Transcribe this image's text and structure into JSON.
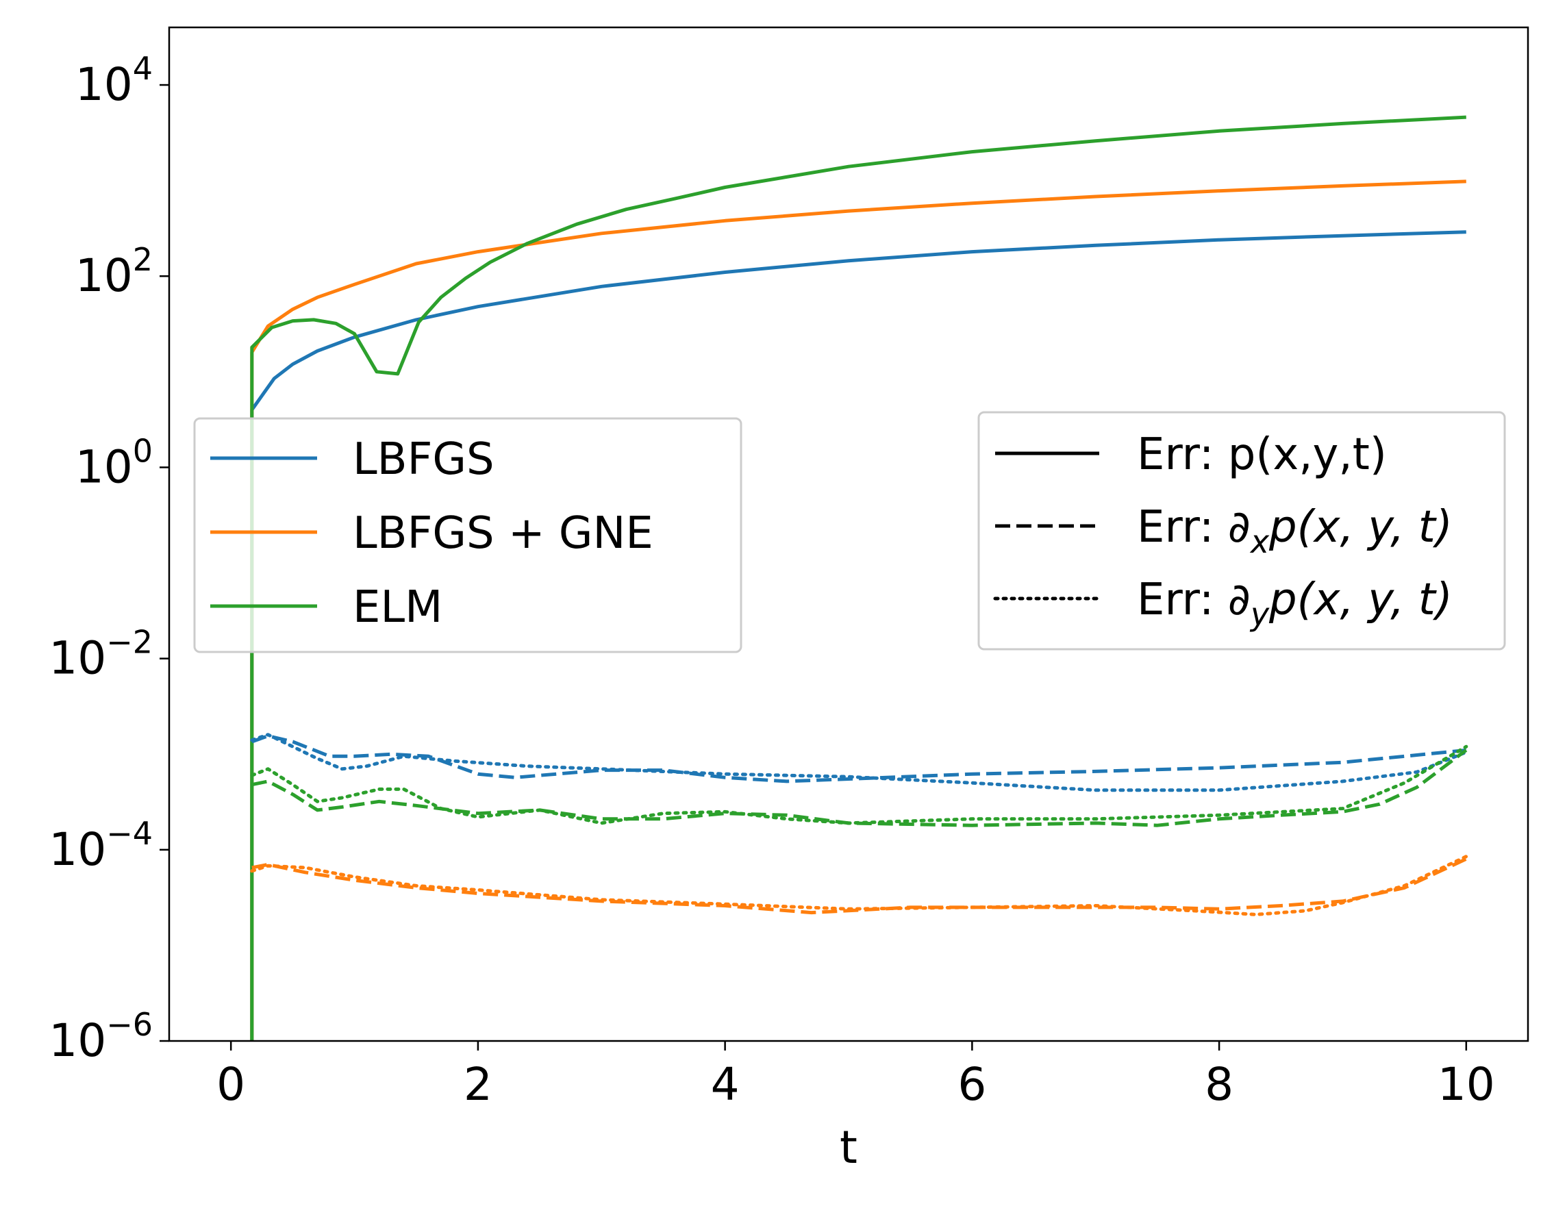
{
  "chart_data": {
    "type": "line",
    "title": "",
    "xlabel": "t",
    "ylabel": "",
    "xlim": [
      -0.5,
      10.5
    ],
    "ylim": [
      1e-06,
      40000
    ],
    "yscale": "log",
    "grid": false,
    "xticks": [
      0,
      2,
      4,
      6,
      8,
      10
    ],
    "xtick_labels": [
      "0",
      "2",
      "4",
      "6",
      "8",
      "10"
    ],
    "yticks": [
      {
        "value": 1e-06,
        "base": "10",
        "exp": "−6"
      },
      {
        "value": 0.0001,
        "base": "10",
        "exp": "−4"
      },
      {
        "value": 0.01,
        "base": "10",
        "exp": "−2"
      },
      {
        "value": 1,
        "base": "10",
        "exp": "0"
      },
      {
        "value": 100,
        "base": "10",
        "exp": "2"
      },
      {
        "value": 10000,
        "base": "10",
        "exp": "4"
      }
    ],
    "colors": {
      "LBFGS": "#1f77b4",
      "LBFGS + GNE": "#ff7f0e",
      "ELM": "#2ca02c"
    },
    "legend_methods": {
      "placement": "center-left",
      "entries": [
        {
          "label": "LBFGS",
          "color": "#1f77b4"
        },
        {
          "label": "LBFGS + GNE",
          "color": "#ff7f0e"
        },
        {
          "label": "ELM",
          "color": "#2ca02c"
        }
      ]
    },
    "legend_quantities": {
      "placement": "center-right",
      "entries": [
        {
          "label": "Err: p(x,y,t)",
          "style": "solid",
          "parts": [
            {
              "t": "Err: p(x,y,t)"
            }
          ]
        },
        {
          "label": "Err: ∂xp(x,y,t)",
          "style": "dashed",
          "parts": [
            {
              "t": "Err: ∂"
            },
            {
              "t": "x",
              "sub": true
            },
            {
              "t": "p(x, y, t)",
              "italic": true
            }
          ]
        },
        {
          "label": "Err: ∂yp(x,y,t)",
          "style": "dotted",
          "parts": [
            {
              "t": "Err: ∂"
            },
            {
              "t": "y",
              "sub": true
            },
            {
              "t": "p(x, y, t)",
              "italic": true
            }
          ]
        }
      ]
    },
    "series": [
      {
        "method": "LBFGS",
        "quantity": "p",
        "style": "solid",
        "color": "#1f77b4",
        "x": [
          0.17,
          0.17,
          0.35,
          0.5,
          0.7,
          1.0,
          1.5,
          2,
          3,
          4,
          5,
          6,
          7,
          8,
          9,
          10
        ],
        "y": [
          1e-06,
          4,
          8.5,
          12,
          16.5,
          23,
          35,
          48,
          78,
          110,
          145,
          180,
          210,
          240,
          265,
          290
        ]
      },
      {
        "method": "LBFGS + GNE",
        "quantity": "p",
        "style": "solid",
        "color": "#ff7f0e",
        "x": [
          0.17,
          0.17,
          0.3,
          0.5,
          0.7,
          1.0,
          1.5,
          2,
          3,
          4,
          5,
          6,
          7,
          8,
          9,
          10
        ],
        "y": [
          1e-06,
          16,
          30,
          45,
          60,
          82,
          135,
          180,
          280,
          380,
          480,
          580,
          680,
          780,
          880,
          980
        ]
      },
      {
        "method": "ELM",
        "quantity": "p",
        "style": "solid",
        "color": "#2ca02c",
        "x": [
          0.17,
          0.17,
          0.33,
          0.5,
          0.67,
          0.85,
          1.0,
          1.18,
          1.35,
          1.52,
          1.7,
          1.9,
          2.1,
          2.4,
          2.8,
          3.2,
          3.6,
          4.0,
          5,
          6,
          7,
          8,
          9,
          10
        ],
        "y": [
          1e-06,
          18,
          29,
          34,
          35,
          32,
          25,
          10,
          9.5,
          33,
          60,
          95,
          140,
          220,
          350,
          500,
          650,
          850,
          1400,
          2000,
          2600,
          3300,
          3950,
          4600
        ]
      },
      {
        "method": "LBFGS",
        "quantity": "dx",
        "style": "dashed",
        "color": "#1f77b4",
        "x": [
          0.17,
          0.3,
          0.5,
          0.8,
          1.0,
          1.3,
          1.6,
          2.0,
          2.3,
          3.0,
          3.5,
          4.0,
          4.5,
          5.0,
          6.0,
          7.0,
          8.0,
          9.0,
          9.5,
          10.0
        ],
        "y": [
          0.00135,
          0.00155,
          0.00135,
          0.00095,
          0.00095,
          0.001,
          0.00095,
          0.00062,
          0.00057,
          0.00068,
          0.00068,
          0.00057,
          0.00052,
          0.00055,
          0.00062,
          0.00066,
          0.00072,
          0.00082,
          0.00095,
          0.0011
        ]
      },
      {
        "method": "LBFGS",
        "quantity": "dy",
        "style": "dotted",
        "color": "#1f77b4",
        "x": [
          0.17,
          0.3,
          0.5,
          0.7,
          0.9,
          1.1,
          1.4,
          1.8,
          2.4,
          3.0,
          4.0,
          5.0,
          6.0,
          7.0,
          8.0,
          9.0,
          9.6,
          10.0
        ],
        "y": [
          0.0014,
          0.0016,
          0.0012,
          0.0009,
          0.0007,
          0.00075,
          0.00095,
          0.00085,
          0.00075,
          0.0007,
          0.00062,
          0.00058,
          0.0005,
          0.00042,
          0.00042,
          0.00052,
          0.00065,
          0.00105
        ]
      },
      {
        "method": "LBFGS + GNE",
        "quantity": "dx",
        "style": "dashed",
        "color": "#ff7f0e",
        "x": [
          0.17,
          0.3,
          0.6,
          1.0,
          1.5,
          2.0,
          3.0,
          4.0,
          4.7,
          5.5,
          6.5,
          7.5,
          8.0,
          8.5,
          9.0,
          9.5,
          10.0
        ],
        "y": [
          6.5e-05,
          7e-05,
          5.8e-05,
          4.8e-05,
          4e-05,
          3.5e-05,
          2.9e-05,
          2.6e-05,
          2.2e-05,
          2.5e-05,
          2.5e-05,
          2.5e-05,
          2.4e-05,
          2.6e-05,
          2.9e-05,
          4e-05,
          8e-05
        ]
      },
      {
        "method": "LBFGS + GNE",
        "quantity": "dy",
        "style": "dotted",
        "color": "#ff7f0e",
        "x": [
          0.17,
          0.3,
          0.6,
          1.0,
          1.5,
          2.0,
          3.0,
          4.0,
          5.0,
          6.0,
          7.0,
          7.8,
          8.3,
          8.7,
          9.0,
          9.5,
          10.0
        ],
        "y": [
          6e-05,
          6.8e-05,
          6.5e-05,
          5.2e-05,
          4.2e-05,
          3.8e-05,
          3e-05,
          2.7e-05,
          2.4e-05,
          2.5e-05,
          2.6e-05,
          2.3e-05,
          2.1e-05,
          2.3e-05,
          2.8e-05,
          4.2e-05,
          8.5e-05
        ]
      },
      {
        "method": "ELM",
        "quantity": "dx",
        "style": "dashed",
        "color": "#2ca02c",
        "x": [
          0.17,
          0.3,
          0.5,
          0.7,
          0.9,
          1.2,
          1.5,
          2.0,
          2.5,
          3.0,
          3.5,
          4.0,
          4.5,
          5.0,
          6.0,
          7.0,
          7.5,
          8.0,
          8.5,
          9.0,
          9.3,
          9.6,
          10.0
        ],
        "y": [
          0.00048,
          0.00052,
          0.00038,
          0.00026,
          0.00028,
          0.00032,
          0.00029,
          0.00024,
          0.00026,
          0.00021,
          0.00021,
          0.00024,
          0.00023,
          0.00019,
          0.00018,
          0.00019,
          0.00018,
          0.00021,
          0.00023,
          0.00025,
          0.0003,
          0.00045,
          0.0011
        ]
      },
      {
        "method": "ELM",
        "quantity": "dy",
        "style": "dotted",
        "color": "#2ca02c",
        "x": [
          0.17,
          0.3,
          0.5,
          0.7,
          0.9,
          1.2,
          1.4,
          1.7,
          2.0,
          2.5,
          3.0,
          3.5,
          4.0,
          4.5,
          5.0,
          6.0,
          7.0,
          8.0,
          9.0,
          9.5,
          10.0
        ],
        "y": [
          0.0006,
          0.0007,
          0.00048,
          0.00032,
          0.00035,
          0.00043,
          0.00043,
          0.00027,
          0.00022,
          0.00026,
          0.00019,
          0.00024,
          0.00025,
          0.00021,
          0.00019,
          0.00021,
          0.00021,
          0.00023,
          0.00027,
          0.0005,
          0.0012
        ]
      }
    ]
  }
}
